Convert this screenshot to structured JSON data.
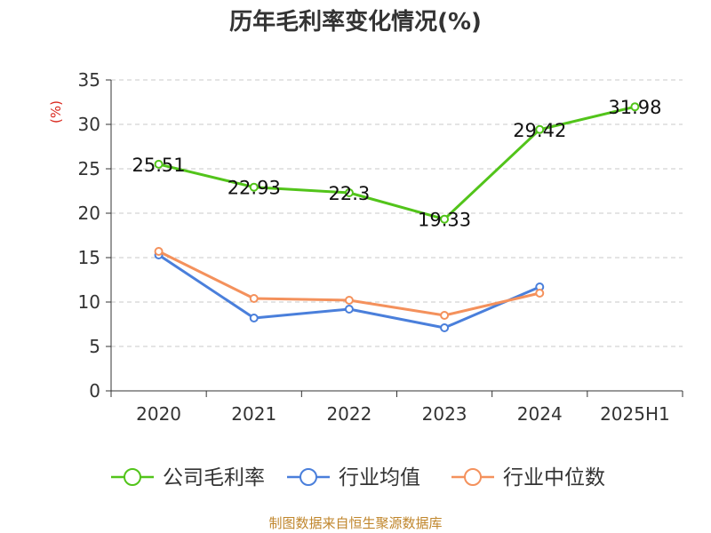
{
  "page": {
    "title": "历年毛利率变化情况(%)",
    "source": "制图数据来自恒生聚源数据库"
  },
  "chart_data": {
    "type": "line",
    "title": "历年毛利率变化情况(%)",
    "ylabel": "(%)",
    "xlabel": "",
    "categories": [
      "2020",
      "2021",
      "2022",
      "2023",
      "2024",
      "2025H1"
    ],
    "ylim": [
      0,
      35
    ],
    "yticks": [
      0,
      5,
      10,
      15,
      20,
      25,
      30,
      35
    ],
    "grid": true,
    "legend_position": "bottom",
    "series": [
      {
        "name": "公司毛利率",
        "color": "#52c41a",
        "show_labels": true,
        "values": [
          25.51,
          22.93,
          22.3,
          19.33,
          29.42,
          31.98
        ]
      },
      {
        "name": "行业均值",
        "color": "#4a7fdb",
        "show_labels": false,
        "values": [
          15.3,
          8.2,
          9.2,
          7.1,
          11.7,
          null
        ]
      },
      {
        "name": "行业中位数",
        "color": "#f4915c",
        "show_labels": false,
        "values": [
          15.7,
          10.4,
          10.2,
          8.5,
          11.0,
          null
        ]
      }
    ]
  }
}
